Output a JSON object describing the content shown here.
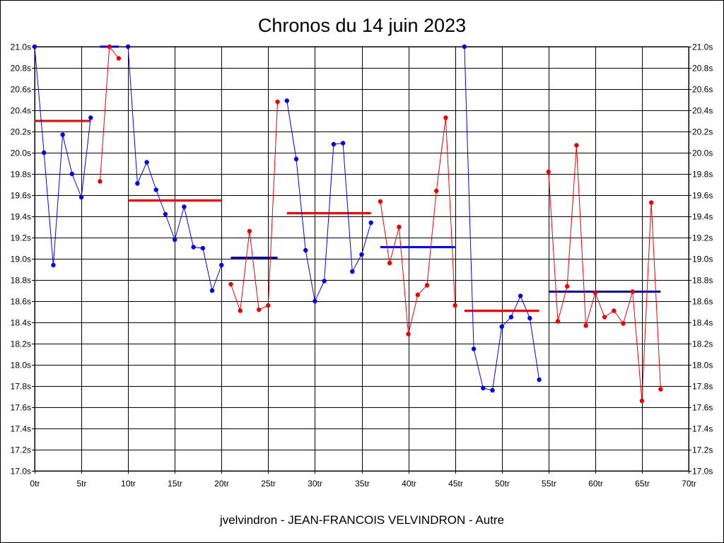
{
  "chart_data": {
    "type": "line",
    "title": "Chronos du 14 juin 2023",
    "footer": "jvelvindron - JEAN-FRANCOIS VELVINDRON - Autre",
    "xlabel": "",
    "ylabel": "",
    "xlim": [
      0,
      70
    ],
    "ylim": [
      17.0,
      21.0
    ],
    "grid": true,
    "y_ticks": [
      "17.0s",
      "17.2s",
      "17.4s",
      "17.6s",
      "17.8s",
      "18.0s",
      "18.2s",
      "18.4s",
      "18.6s",
      "18.8s",
      "19.0s",
      "19.2s",
      "19.4s",
      "19.6s",
      "19.8s",
      "20.0s",
      "20.2s",
      "20.4s",
      "20.6s",
      "20.8s",
      "21.0s"
    ],
    "y_tick_values": [
      17.0,
      17.2,
      17.4,
      17.6,
      17.8,
      18.0,
      18.2,
      18.4,
      18.6,
      18.8,
      19.0,
      19.2,
      19.4,
      19.6,
      19.8,
      20.0,
      20.2,
      20.4,
      20.6,
      20.8,
      21.0
    ],
    "x_ticks": [
      "0tr",
      "5tr",
      "10tr",
      "15tr",
      "20tr",
      "25tr",
      "30tr",
      "35tr",
      "40tr",
      "45tr",
      "50tr",
      "55tr",
      "60tr",
      "65tr",
      "70tr"
    ],
    "x_tick_values": [
      0,
      5,
      10,
      15,
      20,
      25,
      30,
      35,
      40,
      45,
      50,
      55,
      60,
      65,
      70
    ],
    "colors": {
      "blue": "#0000ee",
      "red": "#ee0000",
      "grid": "#000000"
    },
    "series": [
      {
        "color": "blue",
        "x": [
          0,
          1,
          2,
          3,
          4,
          5,
          6
        ],
        "y": [
          21.0,
          20.0,
          18.94,
          20.17,
          19.8,
          19.58,
          20.33
        ]
      },
      {
        "color": "red",
        "x": [
          7,
          8,
          9
        ],
        "y": [
          19.73,
          21.0,
          20.89
        ]
      },
      {
        "color": "blue",
        "x": [
          10,
          11,
          12,
          13,
          14,
          15,
          16,
          17,
          18,
          19,
          20
        ],
        "y": [
          21.0,
          19.71,
          19.91,
          19.65,
          19.42,
          19.18,
          19.49,
          19.11,
          19.1,
          18.7,
          18.94
        ]
      },
      {
        "color": "red",
        "x": [
          21,
          22,
          23,
          24,
          25,
          26
        ],
        "y": [
          18.76,
          18.51,
          19.26,
          18.52,
          18.56,
          20.48
        ]
      },
      {
        "color": "blue",
        "x": [
          27,
          28,
          29,
          30,
          31,
          32,
          33,
          34,
          35,
          36
        ],
        "y": [
          20.49,
          19.94,
          19.08,
          18.6,
          18.79,
          20.08,
          20.09,
          18.88,
          19.04,
          19.34
        ]
      },
      {
        "color": "red",
        "x": [
          37,
          38,
          39,
          40,
          41,
          42,
          43,
          44,
          45
        ],
        "y": [
          19.54,
          18.96,
          19.3,
          18.29,
          18.66,
          18.75,
          19.64,
          20.33,
          18.56
        ]
      },
      {
        "color": "blue",
        "x": [
          46,
          47,
          48,
          49,
          50,
          51,
          52,
          53,
          54
        ],
        "y": [
          21.0,
          18.15,
          17.78,
          17.76,
          18.36,
          18.45,
          18.65,
          18.44,
          17.86
        ]
      },
      {
        "color": "red",
        "x": [
          55,
          56,
          57,
          58,
          59,
          60,
          61,
          62,
          63,
          64,
          65,
          66,
          67
        ],
        "y": [
          19.82,
          18.41,
          18.74,
          20.07,
          18.37,
          18.68,
          18.45,
          18.51,
          18.39,
          18.69,
          17.66,
          19.53,
          17.77
        ]
      }
    ],
    "averages": [
      {
        "color": "red",
        "x": [
          0,
          6
        ],
        "y": 20.3
      },
      {
        "color": "blue",
        "x": [
          7,
          9
        ],
        "y": 21.0
      },
      {
        "color": "red",
        "x": [
          10,
          20
        ],
        "y": 19.55
      },
      {
        "color": "blue",
        "x": [
          21,
          26
        ],
        "y": 19.01
      },
      {
        "color": "red",
        "x": [
          27,
          36
        ],
        "y": 19.43
      },
      {
        "color": "blue",
        "x": [
          37,
          45
        ],
        "y": 19.11
      },
      {
        "color": "red",
        "x": [
          46,
          54
        ],
        "y": 18.51
      },
      {
        "color": "blue",
        "x": [
          55,
          67
        ],
        "y": 18.69
      }
    ]
  }
}
